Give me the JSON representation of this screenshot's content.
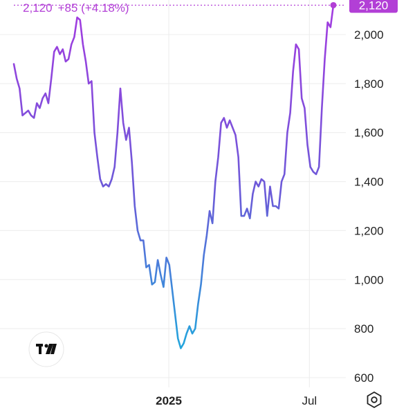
{
  "header": {
    "price": "2,120",
    "change": "+85 (+4.18%)",
    "badge": "2,120"
  },
  "logo": {
    "icon": "tradingview-logo-icon"
  },
  "settings": {
    "icon": "settings-gear-icon"
  },
  "colors": {
    "accent": "#b23fd6",
    "line_top": "#a33be0",
    "line_bottom": "#22a6dc",
    "grid": "#ececec",
    "text": "#222222"
  },
  "chart_data": {
    "type": "line",
    "title": "",
    "xlabel": "",
    "ylabel": "",
    "ylim": [
      600,
      2120
    ],
    "y_ticks": [
      "600",
      "800",
      "1,000",
      "1,200",
      "1,400",
      "1,600",
      "1,800",
      "2,000"
    ],
    "x_ticks": [
      {
        "label": "2025",
        "t": 0.485,
        "bold": true
      },
      {
        "label": "Jul",
        "t": 0.925,
        "bold": false
      }
    ],
    "grid": true,
    "last_value": 2120,
    "series": [
      {
        "values": [
          1880,
          1820,
          1780,
          1670,
          1680,
          1690,
          1670,
          1660,
          1720,
          1700,
          1740,
          1760,
          1720,
          1820,
          1930,
          1950,
          1920,
          1940,
          1890,
          1900,
          1960,
          1990,
          2070,
          2060,
          1960,
          1890,
          1800,
          1810,
          1600,
          1500,
          1410,
          1380,
          1390,
          1380,
          1410,
          1460,
          1600,
          1780,
          1640,
          1570,
          1620,
          1480,
          1300,
          1200,
          1160,
          1160,
          1050,
          1060,
          980,
          990,
          1080,
          1020,
          970,
          1090,
          1060,
          960,
          860,
          760,
          720,
          740,
          780,
          810,
          780,
          800,
          900,
          980,
          1100,
          1180,
          1280,
          1230,
          1400,
          1500,
          1640,
          1660,
          1620,
          1650,
          1620,
          1590,
          1500,
          1260,
          1260,
          1290,
          1250,
          1350,
          1400,
          1380,
          1410,
          1400,
          1260,
          1380,
          1300,
          1300,
          1290,
          1400,
          1430,
          1600,
          1680,
          1850,
          1960,
          1940,
          1740,
          1700,
          1550,
          1460,
          1440,
          1430,
          1460,
          1700,
          1900,
          2050,
          2030,
          2120
        ]
      }
    ]
  }
}
